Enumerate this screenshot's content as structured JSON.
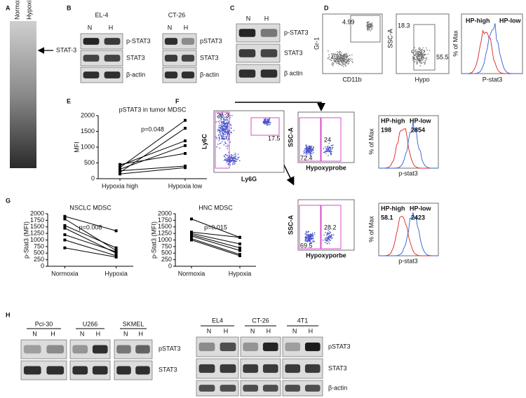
{
  "panels": {
    "a": {
      "label": "A",
      "lanes": [
        "Normoxia",
        "Hypoxia"
      ],
      "band": "STAT-3"
    },
    "b": {
      "label": "B",
      "cell_lines": [
        "EL-4",
        "CT-26"
      ],
      "lanes": [
        "N",
        "H",
        "N",
        "H"
      ],
      "rows_left": [
        "p-STAT3",
        "STAT3",
        "β-actin"
      ],
      "rows_right": [
        "pSTAT3",
        "STAT3",
        "β-actin"
      ]
    },
    "c": {
      "label": "C",
      "lanes": [
        "N",
        "H"
      ],
      "rows": [
        "p-STAT3",
        "STAT3",
        "β actin"
      ]
    },
    "d": {
      "label": "D",
      "plots": [
        {
          "y_label": "Gr-1",
          "x_label": "CD11b",
          "gates": [
            4.99
          ]
        },
        {
          "y_label": "SSC-A",
          "x_label": "Hypo",
          "gates": [
            18.3,
            55.5
          ]
        },
        {
          "y_label": "% of Max",
          "x_label": "P-stat3",
          "legend": [
            "HP-high",
            "HP-low"
          ]
        }
      ]
    },
    "e": {
      "label": "E",
      "chart": {
        "type": "line",
        "title": "pSTAT3 in tumor MDSC",
        "y_label": "MFI",
        "annotation": "p=0.048",
        "categories": [
          "Hypoxia high",
          "Hypoxia low"
        ],
        "ylim": [
          0,
          2000
        ],
        "yticks": [
          0,
          500,
          1000,
          1500,
          2000
        ],
        "series": [
          {
            "color": "#000000",
            "values": [
              350,
              1850
            ]
          },
          {
            "color": "#000000",
            "values": [
              200,
              1600
            ]
          },
          {
            "color": "#000000",
            "values": [
              420,
              1200
            ]
          },
          {
            "color": "#000000",
            "values": [
              300,
              1050
            ]
          },
          {
            "color": "#000000",
            "values": [
              450,
              800
            ]
          },
          {
            "color": "#000000",
            "values": [
              250,
              400
            ]
          },
          {
            "color": "#000000",
            "values": [
              150,
              350
            ]
          }
        ]
      }
    },
    "f": {
      "label": "F",
      "scatter": {
        "y_label": "Ly6C",
        "x_label": "Ly6G",
        "gates": [
          26.3,
          17.5
        ]
      },
      "rows": [
        {
          "y_label": "SSC-A",
          "x_label": "Hypoxyprobe",
          "gates": [
            72.4,
            24
          ],
          "hist": {
            "y_label": "% of Max",
            "x_label": "p-stat3",
            "high": "HP-high",
            "high_value": 198,
            "low": "HP-low",
            "low_value": 2854
          }
        },
        {
          "y_label": "SSC-A",
          "x_label": "Hypoxyporbe",
          "gates": [
            69.5,
            28.2
          ],
          "hist": {
            "y_label": "% of Max",
            "x_label": "p-stat3",
            "high": "HP-high",
            "high_value": 58.1,
            "low": "HP-low",
            "low_value": 2423
          }
        }
      ]
    },
    "g": {
      "label": "G",
      "charts": [
        {
          "type": "line",
          "title": "NSCLC MDSC",
          "y_label": "p-Stat3 (MFI)",
          "annotation": "p=0.008",
          "categories": [
            "Normoxia",
            "Hypoxia"
          ],
          "ylim": [
            0,
            2000
          ],
          "yticks": [
            0,
            250,
            500,
            750,
            1000,
            1250,
            1500,
            1750,
            2000
          ],
          "series": [
            {
              "color": "#000000",
              "values": [
                1900,
                1350
              ]
            },
            {
              "color": "#000000",
              "values": [
                1800,
                600
              ]
            },
            {
              "color": "#000000",
              "values": [
                1550,
                700
              ]
            },
            {
              "color": "#000000",
              "values": [
                1450,
                500
              ]
            },
            {
              "color": "#000000",
              "values": [
                1200,
                550
              ]
            },
            {
              "color": "#000000",
              "values": [
                1000,
                400
              ]
            },
            {
              "color": "#000000",
              "values": [
                700,
                350
              ]
            }
          ]
        },
        {
          "type": "line",
          "title": "HNC MDSC",
          "y_label": "p-Stat3 (MFI)",
          "annotation": "p=0.015",
          "categories": [
            "Normoxia",
            "Hypoxia"
          ],
          "ylim": [
            0,
            2000
          ],
          "yticks": [
            0,
            250,
            500,
            750,
            1000,
            1250,
            1500,
            1750,
            2000
          ],
          "series": [
            {
              "color": "#000000",
              "values": [
                1800,
                1100
              ]
            },
            {
              "color": "#000000",
              "values": [
                1300,
                1100
              ]
            },
            {
              "color": "#000000",
              "values": [
                1250,
                850
              ]
            },
            {
              "color": "#000000",
              "values": [
                1200,
                700
              ]
            },
            {
              "color": "#000000",
              "values": [
                1150,
                600
              ]
            },
            {
              "color": "#000000",
              "values": [
                1050,
                450
              ]
            },
            {
              "color": "#000000",
              "values": [
                1000,
                400
              ]
            }
          ]
        }
      ]
    },
    "h": {
      "label": "H",
      "left": {
        "cell_lines": [
          "Pci-30",
          "U266",
          "SKMEL"
        ],
        "lanes": [
          "N",
          "H"
        ],
        "rows": [
          "pSTAT3",
          "STAT3"
        ]
      },
      "right": {
        "cell_lines": [
          "EL4",
          "CT-26",
          "4T1"
        ],
        "lanes": [
          "N",
          "H"
        ],
        "rows": [
          "pSTAT3",
          "STAT3",
          "β-actin"
        ]
      }
    }
  }
}
